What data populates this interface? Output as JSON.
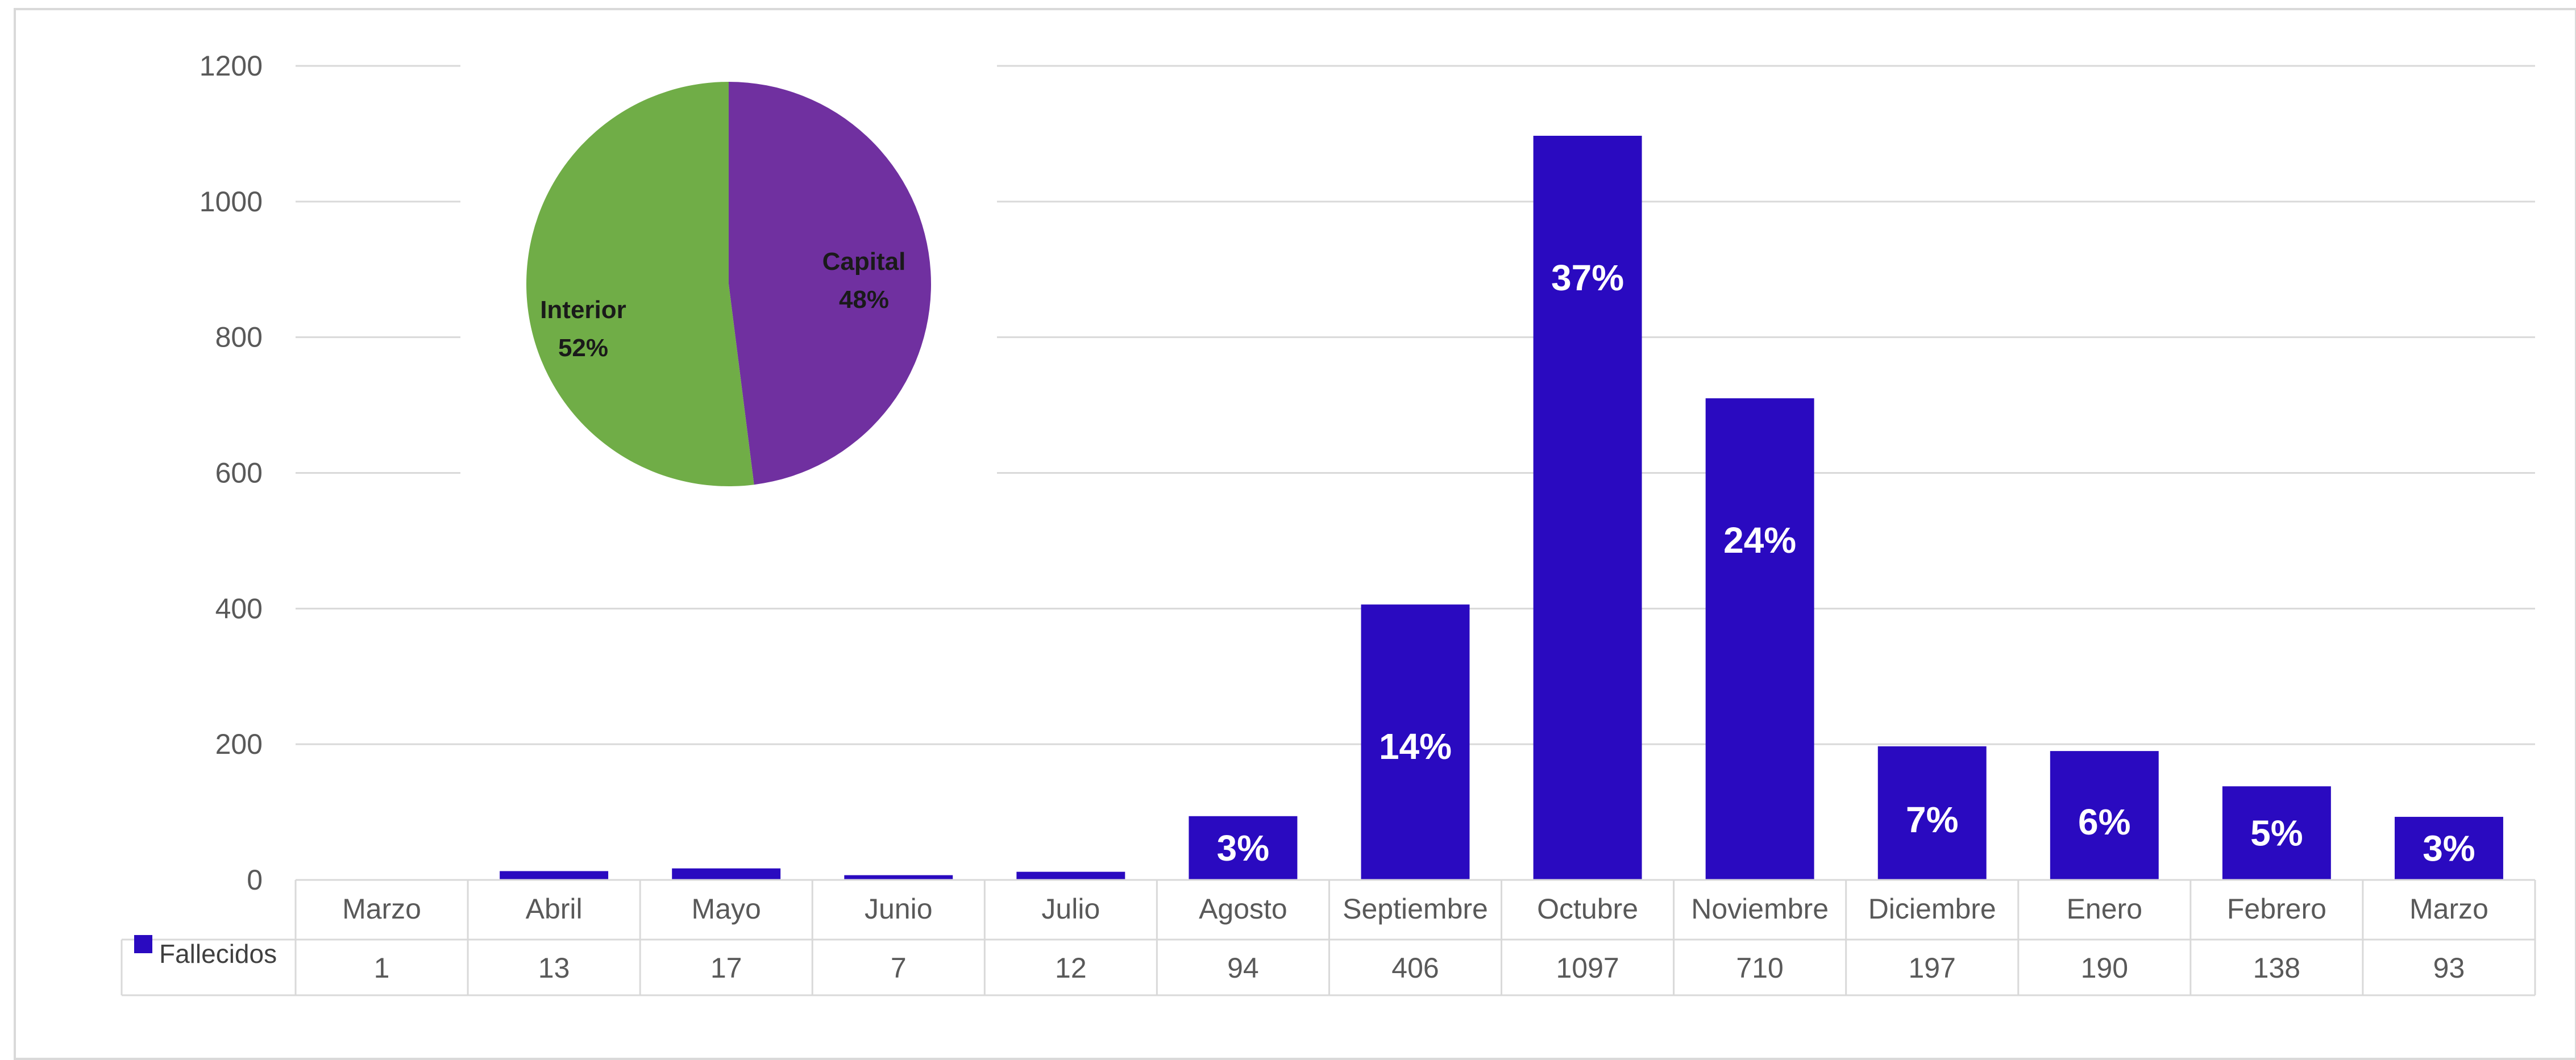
{
  "chart_data": [
    {
      "type": "bar",
      "categories": [
        "Marzo",
        "Abril",
        "Mayo",
        "Junio",
        "Julio",
        "Agosto",
        "Septiembre",
        "Octubre",
        "Noviembre",
        "Diciembre",
        "Enero",
        "Febrero",
        "Marzo"
      ],
      "series": [
        {
          "name": "Fallecidos",
          "values": [
            1,
            13,
            17,
            7,
            12,
            94,
            406,
            1097,
            710,
            197,
            190,
            138,
            93
          ],
          "color": "#2a0ac0"
        }
      ],
      "data_labels": [
        "",
        "",
        "",
        "",
        "",
        "3%",
        "14%",
        "37%",
        "24%",
        "7%",
        "6%",
        "5%",
        "3%"
      ],
      "y_ticks": [
        0,
        200,
        400,
        600,
        800,
        1000,
        1200
      ],
      "ylim": [
        0,
        1200
      ],
      "grid": true,
      "legend": "data-table",
      "data_table": true
    },
    {
      "type": "pie",
      "slices": [
        {
          "label": "Capital",
          "percent_label": "48%",
          "value": 48,
          "color": "#7030a0"
        },
        {
          "label": "Interior",
          "percent_label": "52%",
          "value": 52,
          "color": "#70ad47"
        }
      ]
    }
  ]
}
